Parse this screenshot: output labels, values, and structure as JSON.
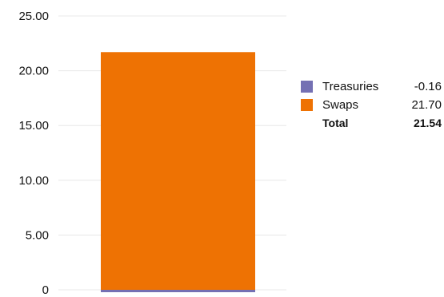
{
  "chart_data": {
    "type": "bar",
    "stacked": true,
    "categories": [
      ""
    ],
    "series": [
      {
        "name": "Treasuries",
        "values": [
          -0.16
        ],
        "color": "#7470b3"
      },
      {
        "name": "Swaps",
        "values": [
          21.7
        ],
        "color": "#ee7203"
      }
    ],
    "ylim": [
      0,
      25
    ],
    "yticks": [
      0,
      5,
      10,
      15,
      20,
      25
    ],
    "ytick_labels": [
      "0",
      "5.00",
      "10.00",
      "15.00",
      "20.00",
      "25.00"
    ],
    "grid": true,
    "legend_placement": "right",
    "legend": {
      "items": [
        {
          "label": "Treasuries",
          "value": "-0.16",
          "color": "#7470b3"
        },
        {
          "label": "Swaps",
          "value": "21.70",
          "color": "#ee7203"
        }
      ],
      "total": {
        "label": "Total",
        "value": "21.54"
      }
    },
    "grid_color": "#e8e8e8"
  }
}
